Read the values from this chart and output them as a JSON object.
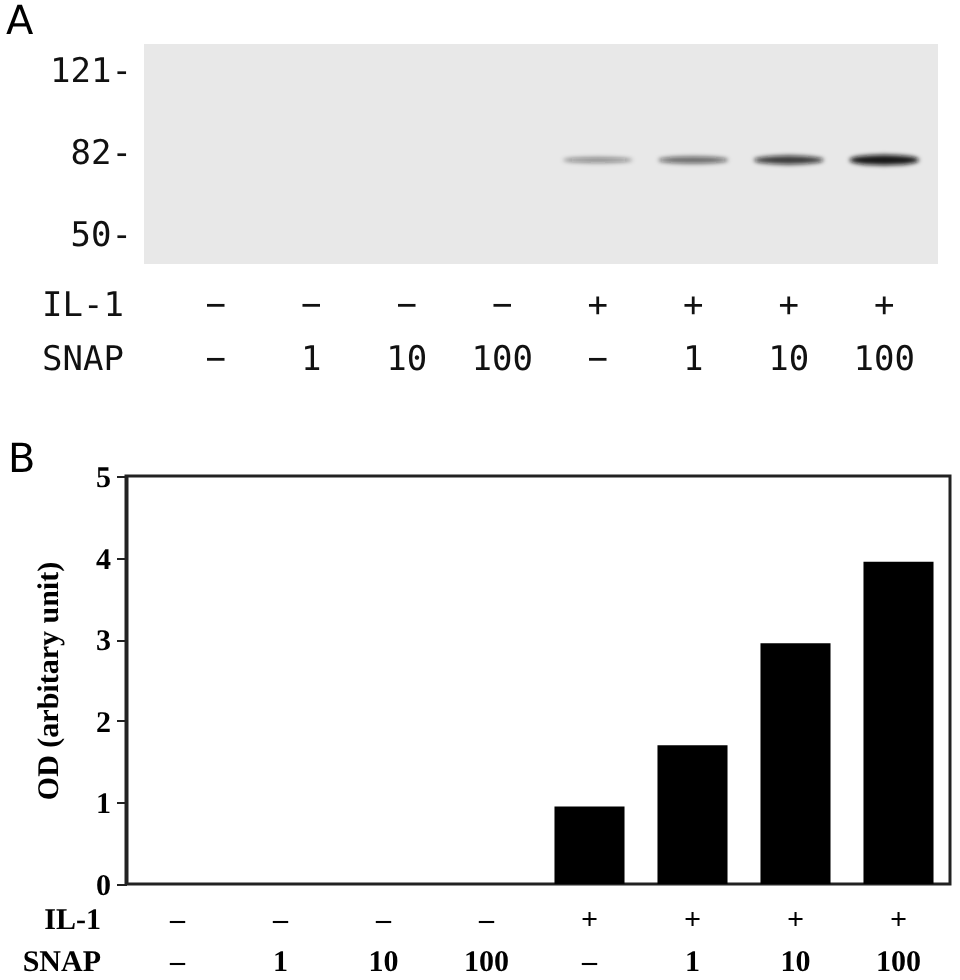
{
  "chart_data": [
    {
      "type": "other",
      "title": "A",
      "categories": [
        "−\n−",
        "−\n1",
        "−\n10",
        "−\n100",
        "+\n−",
        "+\n1",
        "+\n10",
        "+\n100"
      ],
      "xlabel": "IL-1\nSNAP",
      "annotations": [
        "121-",
        "82-",
        "50-"
      ]
    },
    {
      "type": "bar",
      "title": "B",
      "categories": [
        "–\n–",
        "–\n1",
        "–\n10",
        "–\n100",
        "+\n–",
        "+\n1",
        "+\n10",
        "+\n100"
      ],
      "xlabel": "IL-1\nSNAP",
      "ylabel": "OD (arbitary unit)",
      "values": [
        0,
        0,
        0,
        0,
        0.95,
        1.7,
        2.95,
        3.95
      ],
      "color": "#000000",
      "ylim": [
        0,
        5
      ],
      "yticks": [
        0,
        1,
        2,
        3,
        4,
        5
      ]
    }
  ]
}
